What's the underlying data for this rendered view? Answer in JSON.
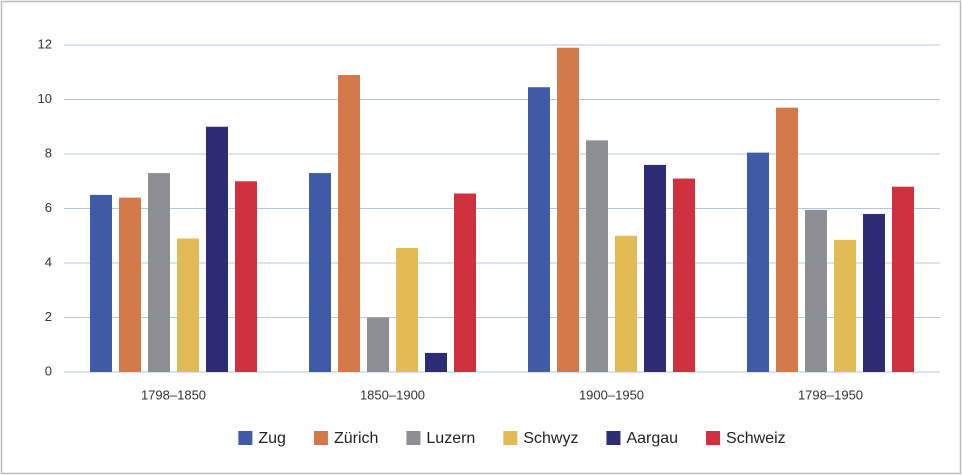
{
  "chart_data": {
    "type": "bar",
    "categories": [
      "1798–1850",
      "1850–1900",
      "1900–1950",
      "1798–1950"
    ],
    "series": [
      {
        "name": "Zug",
        "color": "#3f5aa6",
        "values": [
          6.5,
          7.3,
          10.45,
          8.05
        ]
      },
      {
        "name": "Zürich",
        "color": "#d47a4a",
        "values": [
          6.4,
          10.9,
          11.9,
          9.7
        ]
      },
      {
        "name": "Luzern",
        "color": "#8e8e95",
        "values": [
          7.3,
          2.0,
          8.5,
          5.95
        ]
      },
      {
        "name": "Schwyz",
        "color": "#e2bb55",
        "values": [
          4.9,
          4.55,
          5.0,
          4.85
        ]
      },
      {
        "name": "Aargau",
        "color": "#2e2c74",
        "values": [
          9.0,
          0.7,
          7.6,
          5.8
        ]
      },
      {
        "name": "Schweiz",
        "color": "#d0313e",
        "values": [
          7.0,
          6.55,
          7.1,
          6.8
        ]
      }
    ],
    "ylim": [
      0,
      12
    ],
    "yticks": [
      0,
      2,
      4,
      6,
      8,
      10,
      12
    ],
    "grid": true,
    "legend": "bottom"
  }
}
